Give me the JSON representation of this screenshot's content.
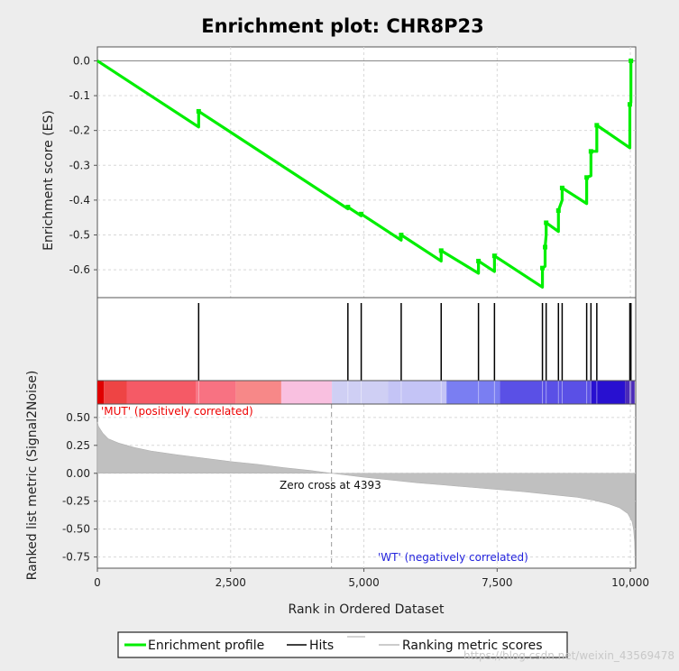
{
  "chart_data": {
    "type": "line",
    "title": "Enrichment plot: CHR8P23",
    "x_label": "Rank in Ordered Dataset",
    "x_ticks": [
      0,
      2500,
      5000,
      7500,
      10000
    ],
    "x_tick_labels": [
      "0",
      "2,500",
      "5,000",
      "7,500",
      "10,000"
    ],
    "xlim": [
      0,
      10100
    ],
    "es_panel": {
      "y_label": "Enrichment score (ES)",
      "ylim": [
        -0.68,
        0.04
      ],
      "y_ticks": [
        0.0,
        -0.1,
        -0.2,
        -0.3,
        -0.4,
        -0.5,
        -0.6
      ],
      "y_tick_labels": [
        "0.0",
        "-0.1",
        "-0.2",
        "-0.3",
        "-0.4",
        "-0.5",
        "-0.6"
      ],
      "series": [
        {
          "name": "Enrichment profile",
          "color": "#00ee00",
          "x": [
            0,
            1900,
            1900,
            4700,
            4700,
            4950,
            4950,
            5700,
            5700,
            6450,
            6450,
            7150,
            7150,
            7450,
            7450,
            8350,
            8350,
            8400,
            8400,
            8420,
            8420,
            8650,
            8650,
            8720,
            8720,
            9180,
            9180,
            9260,
            9260,
            9370,
            9370,
            9990,
            9990,
            10010,
            10010,
            10050
          ],
          "y": [
            0.0,
            -0.19,
            -0.145,
            -0.425,
            -0.42,
            -0.445,
            -0.44,
            -0.515,
            -0.5,
            -0.575,
            -0.545,
            -0.61,
            -0.575,
            -0.605,
            -0.56,
            -0.65,
            -0.595,
            -0.59,
            -0.535,
            -0.5,
            -0.465,
            -0.49,
            -0.43,
            -0.4,
            -0.365,
            -0.41,
            -0.335,
            -0.33,
            -0.26,
            -0.26,
            -0.185,
            -0.25,
            -0.125,
            -0.12,
            0.0,
            0.0
          ]
        }
      ]
    },
    "hits_panel": {
      "series": [
        {
          "name": "Hits",
          "color": "#000000",
          "x": [
            1900,
            4700,
            4950,
            5700,
            6450,
            7150,
            7450,
            8350,
            8420,
            8650,
            8720,
            9180,
            9260,
            9370,
            9990,
            10010
          ]
        }
      ]
    },
    "metric_panel": {
      "y_label": "Ranked list metric (Signal2Noise)",
      "ylim": [
        -0.85,
        0.62
      ],
      "y_ticks": [
        0.5,
        0.25,
        0.0,
        -0.25,
        -0.5,
        -0.75
      ],
      "y_tick_labels": [
        "0.50",
        "0.25",
        "0.00",
        "-0.25",
        "-0.50",
        "-0.75"
      ],
      "series": [
        {
          "name": "Ranking metric scores",
          "color": "#c0c0c0",
          "x": [
            0,
            20,
            100,
            200,
            400,
            700,
            1000,
            1500,
            2000,
            2500,
            3000,
            3500,
            4000,
            4393,
            5000,
            5500,
            6000,
            6500,
            7000,
            7500,
            8000,
            8500,
            9000,
            9300,
            9600,
            9800,
            9950,
            10030,
            10060,
            10080,
            10090
          ],
          "y": [
            0.46,
            0.42,
            0.36,
            0.31,
            0.27,
            0.23,
            0.2,
            0.165,
            0.135,
            0.105,
            0.08,
            0.05,
            0.025,
            0.0,
            -0.035,
            -0.06,
            -0.085,
            -0.105,
            -0.125,
            -0.145,
            -0.165,
            -0.19,
            -0.215,
            -0.24,
            -0.275,
            -0.31,
            -0.36,
            -0.43,
            -0.5,
            -0.62,
            -0.84
          ]
        }
      ],
      "annotations": {
        "positive": "'MUT' (positively correlated)",
        "negative": "'WT' (negatively correlated)",
        "zero_cross": "Zero cross at 4393",
        "zero_cross_x": 4393
      }
    },
    "heatmap_bar": {
      "segments": [
        {
          "x0": 0,
          "x1": 120,
          "color": "#e00000"
        },
        {
          "x0": 120,
          "x1": 550,
          "color": "#ee4444"
        },
        {
          "x0": 550,
          "x1": 1850,
          "color": "#f55a66"
        },
        {
          "x0": 1850,
          "x1": 2600,
          "color": "#f87282"
        },
        {
          "x0": 2600,
          "x1": 3450,
          "color": "#f78888"
        },
        {
          "x0": 3450,
          "x1": 4400,
          "color": "#f9c0e0"
        },
        {
          "x0": 4400,
          "x1": 5450,
          "color": "#cfcff4"
        },
        {
          "x0": 5450,
          "x1": 6550,
          "color": "#c4c4f6"
        },
        {
          "x0": 6550,
          "x1": 7550,
          "color": "#7a7ef2"
        },
        {
          "x0": 7550,
          "x1": 9250,
          "color": "#5a50e6"
        },
        {
          "x0": 9250,
          "x1": 9900,
          "color": "#2810d0"
        },
        {
          "x0": 9900,
          "x1": 10080,
          "color": "#4a2ab8"
        }
      ]
    },
    "legend": {
      "placement": "bottom-center",
      "items": [
        {
          "name": "Enrichment profile",
          "color": "#00ee00",
          "style": "line"
        },
        {
          "name": "Hits",
          "color": "#000000",
          "style": "line"
        },
        {
          "name": "",
          "color": "#bbbbbb",
          "style": "line"
        },
        {
          "name": "Ranking metric scores",
          "color": "#bbbbbb",
          "style": "line"
        }
      ]
    },
    "grid": true
  },
  "watermark": "https://blog.csdn.net/weixin_43569478"
}
